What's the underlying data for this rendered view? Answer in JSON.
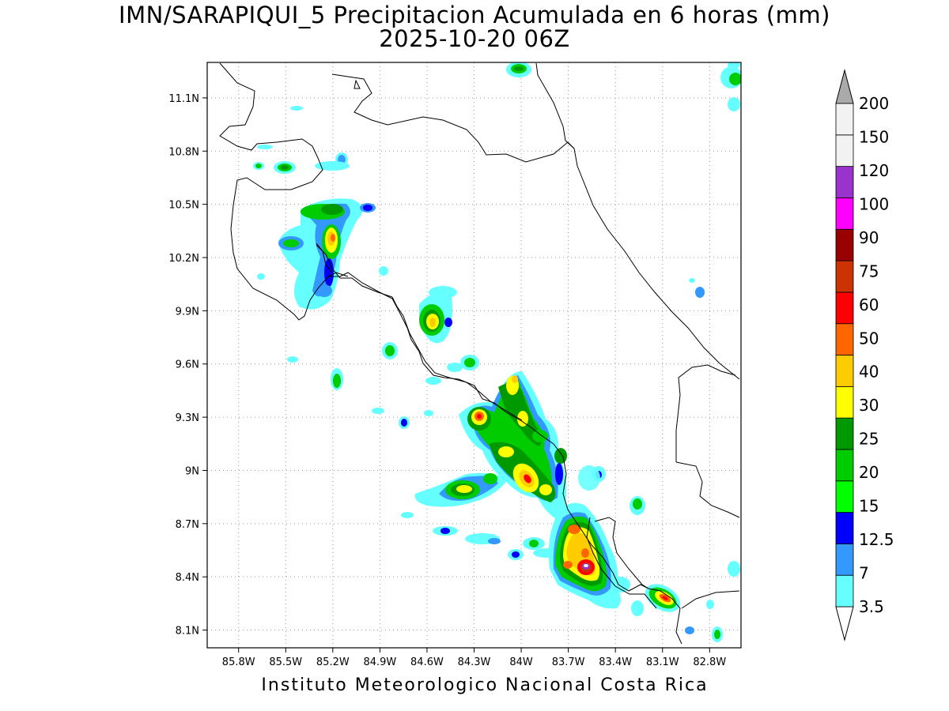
{
  "header": {
    "title": "IMN/SARAPIQUI_5 Precipitacion Acumulada en 6 horas (mm)",
    "subtitle": "2025-10-20 06Z"
  },
  "footer": {
    "text": "Instituto Meteorologico Nacional Costa Rica"
  },
  "map": {
    "lon_range": [
      -86.0,
      -82.6
    ],
    "lat_range": [
      8.0,
      11.3
    ],
    "lat_ticks": [
      "8.1N",
      "8.4N",
      "8.7N",
      "9N",
      "9.3N",
      "9.6N",
      "9.9N",
      "10.2N",
      "10.5N",
      "10.8N",
      "11.1N"
    ],
    "lon_ticks": [
      "85.8W",
      "85.5W",
      "85.2W",
      "84.9W",
      "84.6W",
      "84.3W",
      "84W",
      "83.7W",
      "83.4W",
      "83.1W",
      "82.8W"
    ],
    "grid": true
  },
  "colorbar": {
    "levels": [
      "3.5",
      "7",
      "12.5",
      "15",
      "20",
      "25",
      "30",
      "40",
      "50",
      "60",
      "75",
      "90",
      "100",
      "120",
      "150",
      "200"
    ],
    "colors": [
      "#66ffff",
      "#3399ff",
      "#0000ff",
      "#00ff00",
      "#00cc00",
      "#009900",
      "#ffff00",
      "#ffcc00",
      "#ff6600",
      "#ff0000",
      "#cc3300",
      "#990000",
      "#ff00ff",
      "#9933cc",
      "#f2f2f2",
      "#aaaaaa"
    ],
    "low_color": "#ffffff",
    "high_color": "#aaaaaa"
  }
}
